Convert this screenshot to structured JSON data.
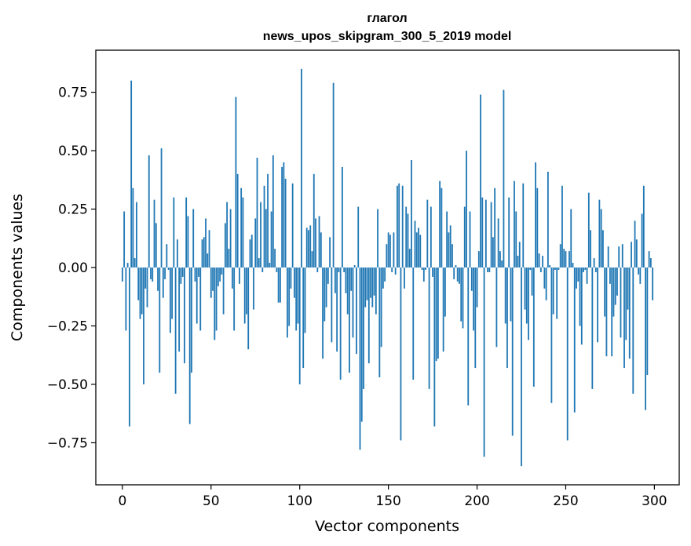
{
  "chart_data": {
    "type": "bar",
    "title_lines": [
      "глагол",
      "news_upos_skipgram_300_5_2019 model"
    ],
    "xlabel": "Vector components",
    "ylabel": "Components values",
    "xlim": [
      -15,
      314
    ],
    "ylim": [
      -0.93,
      0.93
    ],
    "xticks": [
      0,
      50,
      100,
      150,
      200,
      250,
      300
    ],
    "xtick_labels": [
      "0",
      "50",
      "100",
      "150",
      "200",
      "250",
      "300"
    ],
    "yticks": [
      -0.75,
      -0.5,
      -0.25,
      0,
      0.25,
      0.5,
      0.75
    ],
    "ytick_labels": [
      "−0.75",
      "−0.50",
      "−0.25",
      "0.00",
      "0.25",
      "0.50",
      "0.75"
    ],
    "grid": false,
    "bar_color": "#1f77b4",
    "bar_width": 0.8,
    "x_start": 0,
    "values": [
      -0.06,
      0.24,
      -0.27,
      0.02,
      -0.68,
      0.8,
      0.34,
      0.04,
      0.28,
      -0.14,
      -0.22,
      -0.2,
      -0.5,
      -0.09,
      -0.17,
      0.48,
      -0.05,
      -0.06,
      0.29,
      0.19,
      -0.1,
      -0.45,
      0.51,
      -0.13,
      -0.05,
      0.1,
      -0.01,
      -0.28,
      -0.22,
      0.3,
      -0.54,
      0.12,
      -0.36,
      -0.07,
      -0.04,
      -0.41,
      0.3,
      0.22,
      -0.67,
      -0.45,
      0.25,
      -0.06,
      -0.24,
      -0.04,
      -0.27,
      0.12,
      0.13,
      0.21,
      0.06,
      0.16,
      -0.13,
      -0.1,
      -0.31,
      -0.27,
      -0.08,
      -0.06,
      -0.03,
      -0.2,
      0.19,
      0.28,
      0.08,
      0.25,
      -0.09,
      -0.27,
      0.73,
      0.4,
      -0.07,
      0.34,
      0.3,
      -0.24,
      -0.2,
      -0.35,
      0.12,
      0.14,
      -0.18,
      0.21,
      0.47,
      0.04,
      0.28,
      -0.02,
      0.35,
      0.25,
      0.4,
      0.02,
      0.24,
      0.48,
      0.08,
      -0.02,
      -0.15,
      -0.15,
      0.43,
      0.45,
      0.38,
      -0.3,
      -0.25,
      -0.09,
      0.36,
      -0.13,
      -0.27,
      -0.24,
      -0.5,
      0.85,
      -0.43,
      -0.28,
      0.17,
      0.16,
      0.18,
      0.07,
      0.4,
      0.21,
      -0.02,
      0.22,
      0.15,
      -0.39,
      -0.23,
      -0.17,
      -0.07,
      0.13,
      -0.32,
      0.79,
      -0.11,
      -0.36,
      -0.02,
      -0.48,
      0.43,
      -0.02,
      -0.11,
      -0.2,
      -0.45,
      -0.1,
      -0.3,
      0.01,
      -0.37,
      0.26,
      -0.78,
      -0.66,
      -0.52,
      -0.17,
      -0.14,
      -0.41,
      -0.13,
      -0.17,
      -0.12,
      -0.2,
      0.25,
      -0.47,
      -0.34,
      -0.09,
      -0.06,
      0.1,
      0.15,
      0.14,
      -0.02,
      0.15,
      -0.03,
      0.35,
      0.36,
      -0.74,
      0.35,
      -0.09,
      0.26,
      0.23,
      0.08,
      0.46,
      -0.48,
      0.2,
      0.15,
      0.17,
      0.14,
      -0.01,
      -0.06,
      -0.01,
      0.29,
      -0.52,
      0.26,
      -0.04,
      -0.68,
      -0.4,
      -0.39,
      0.37,
      0.34,
      -0.36,
      -0.21,
      0.24,
      0.15,
      0.18,
      0.1,
      -0.05,
      0.01,
      -0.06,
      -0.07,
      -0.23,
      -0.26,
      0.26,
      0.5,
      -0.59,
      0.24,
      -0.1,
      -0.27,
      -0.43,
      -0.17,
      0.07,
      0.74,
      0.3,
      -0.81,
      0.29,
      -0.02,
      -0.02,
      0.28,
      0.13,
      0.34,
      -0.34,
      0.21,
      0.07,
      0.03,
      0.76,
      -0.24,
      -0.43,
      0.3,
      -0.23,
      -0.72,
      0.37,
      0.24,
      0.05,
      0.11,
      -0.85,
      0.36,
      -0.18,
      -0.24,
      -0.31,
      -0.01,
      -0.12,
      -0.51,
      0.45,
      0.34,
      0.06,
      -0.02,
      0.05,
      -0.09,
      -0.14,
      0.41,
      0.01,
      -0.58,
      -0.2,
      -0.01,
      -0.22,
      -0.01,
      0.1,
      0.35,
      0.08,
      0.07,
      -0.74,
      0.07,
      0.25,
      0.02,
      -0.62,
      -0.09,
      -0.06,
      -0.25,
      -0.33,
      -0.02,
      -0.01,
      -0.07,
      0.32,
      0.16,
      -0.52,
      0.04,
      -0.02,
      -0.32,
      0.29,
      0.25,
      0.16,
      -0.21,
      -0.38,
      0.09,
      -0.07,
      -0.38,
      -0.21,
      -0.16,
      -0.12,
      0.09,
      -0.3,
      0.1,
      -0.43,
      -0.31,
      -0.18,
      -0.39,
      0.11,
      -0.54,
      0.2,
      0.12,
      -0.03,
      -0.07,
      0.23,
      0.35,
      -0.61,
      -0.46,
      0.07,
      0.04,
      -0.14
    ]
  }
}
